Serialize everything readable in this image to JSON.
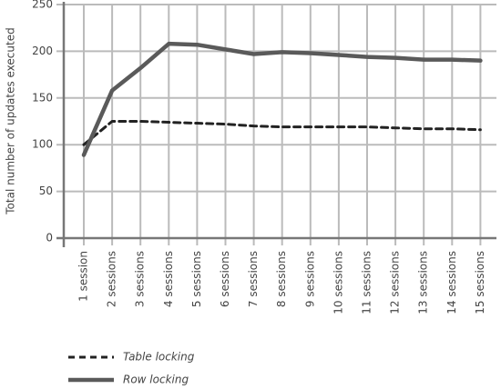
{
  "chart_data": {
    "type": "line",
    "y_label": "Total number of updates executed",
    "categories": [
      "1 session",
      "2 sessions",
      "3 sessions",
      "4 sessions",
      "5 sessions",
      "6 sessions",
      "7 sessions",
      "8 sessions",
      "9 sessions",
      "10 sessions",
      "11 sessions",
      "12 sessions",
      "13 sessions",
      "14 sessions",
      "15 sessions"
    ],
    "series": [
      {
        "name": "Table locking",
        "color": "#222222",
        "dash": true,
        "values": [
          100,
          125,
          125,
          124,
          123,
          122,
          120,
          119,
          119,
          119,
          119,
          118,
          117,
          117,
          116
        ]
      },
      {
        "name": "Row locking",
        "color": "#5a5a5a",
        "dash": false,
        "values": [
          89,
          158,
          182,
          208,
          207,
          202,
          197,
          199,
          198,
          196,
          194,
          193,
          191,
          191,
          190
        ]
      }
    ],
    "ylim": [
      0,
      250
    ],
    "yticks": [
      0,
      50,
      100,
      150,
      200,
      250
    ],
    "grid": true,
    "legend": "bottom-left"
  }
}
